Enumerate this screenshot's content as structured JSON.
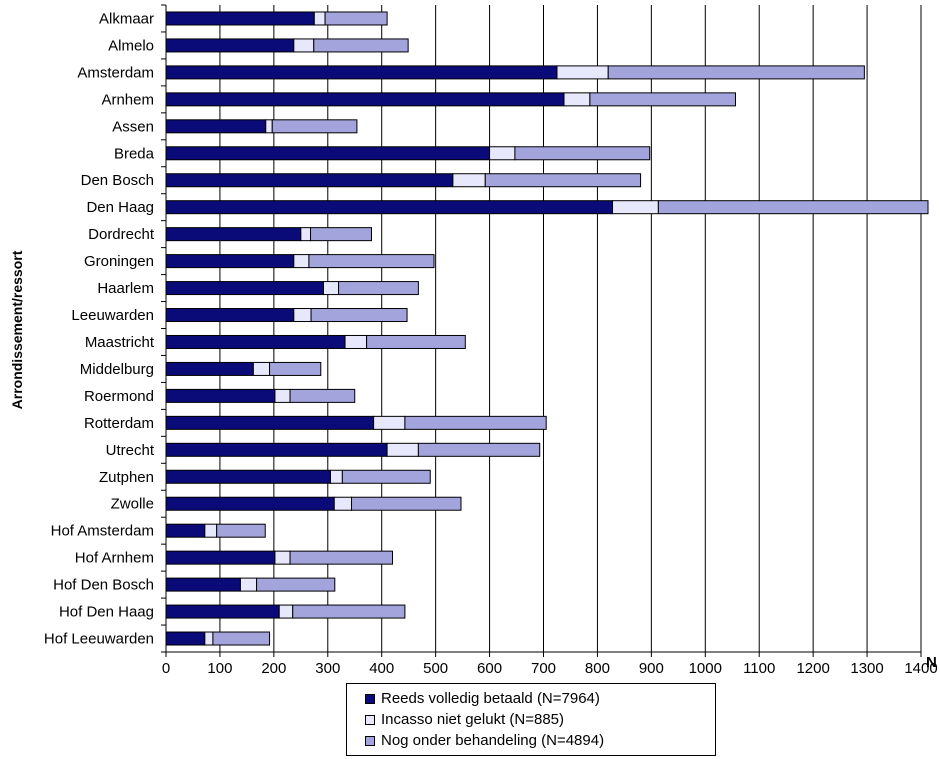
{
  "chart_data": {
    "type": "bar",
    "orientation": "horizontal",
    "stacked": true,
    "title": "",
    "xlabel": "N",
    "ylabel": "Arrondissement/ressort",
    "xlim": [
      0,
      1400
    ],
    "xticks": [
      "0",
      "100",
      "200",
      "300",
      "400",
      "500",
      "600",
      "700",
      "800",
      "900",
      "1000",
      "1100",
      "1200",
      "1300",
      "1400"
    ],
    "grid": true,
    "legend_position": "bottom",
    "categories": [
      "Alkmaar",
      "Almelo",
      "Amsterdam",
      "Arnhem",
      "Assen",
      "Breda",
      "Den Bosch",
      "Den Haag",
      "Dordrecht",
      "Groningen",
      "Haarlem",
      "Leeuwarden",
      "Maastricht",
      "Middelburg",
      "Roermond",
      "Rotterdam",
      "Utrecht",
      "Zutphen",
      "Zwolle",
      "Hof Amsterdam",
      "Hof Arnhem",
      "Hof Den Bosch",
      "Hof Den Haag",
      "Hof Leeuwarden"
    ],
    "series": [
      {
        "name": "Reeds volledig betaald (N=7964)",
        "color": "#0a0a78",
        "values": [
          275,
          237,
          725,
          738,
          185,
          600,
          532,
          828,
          250,
          237,
          292,
          237,
          332,
          162,
          202,
          385,
          410,
          305,
          312,
          72,
          202,
          138,
          210,
          72
        ]
      },
      {
        "name": "Incasso niet gelukt (N=885)",
        "color": "#e8e8fc",
        "values": [
          20,
          37,
          95,
          48,
          12,
          47,
          60,
          85,
          18,
          28,
          28,
          32,
          40,
          30,
          28,
          58,
          58,
          22,
          32,
          22,
          28,
          30,
          25,
          15
        ]
      },
      {
        "name": "Nog onder behandeling (N=4894)",
        "color": "#a4a4dc",
        "values": [
          115,
          175,
          475,
          270,
          157,
          250,
          288,
          500,
          113,
          232,
          148,
          178,
          183,
          95,
          120,
          262,
          225,
          163,
          203,
          90,
          190,
          145,
          208,
          105
        ]
      }
    ]
  }
}
